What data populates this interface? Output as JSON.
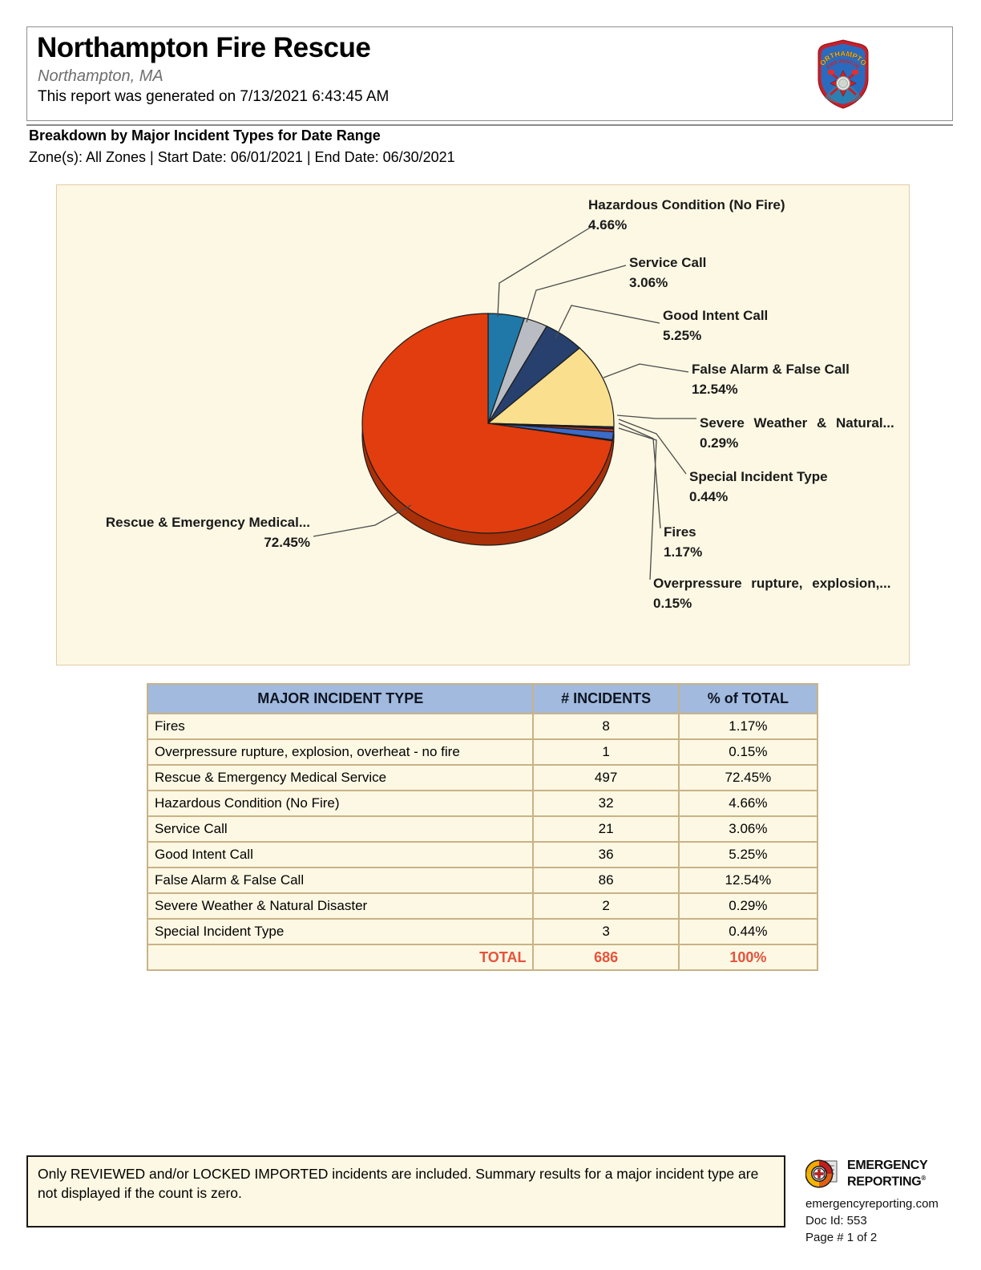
{
  "header": {
    "title": "Northampton Fire Rescue",
    "subtitle": "Northampton, MA",
    "generated": "This report was generated on 7/13/2021 6:43:45 AM",
    "badge_top": "NORTHAMPTON",
    "badge_bottom": "FIRE RESCUE"
  },
  "report": {
    "heading": "Breakdown by Major Incident Types for Date Range",
    "zones": "Zone(s): All Zones | Start Date: 06/01/2021 | End Date: 06/30/2021"
  },
  "chart_data": {
    "type": "pie",
    "title": "Breakdown by Major Incident Types",
    "direction": "clockwise",
    "start_angle_deg": 0,
    "rim_color": "#A93008",
    "slices": [
      {
        "label": "Hazardous Condition (No Fire)",
        "pct": 4.66,
        "pct_label": "4.66%",
        "color": "#1F78A8"
      },
      {
        "label": "Service Call",
        "pct": 3.06,
        "pct_label": "3.06%",
        "color": "#B9BCC2"
      },
      {
        "label": "Good Intent Call",
        "pct": 5.25,
        "pct_label": "5.25%",
        "color": "#27406E"
      },
      {
        "label": "False Alarm & False Call",
        "pct": 12.54,
        "pct_label": "12.54%",
        "color": "#FADF8E"
      },
      {
        "label": "Severe Weather & Natural...",
        "pct": 0.29,
        "pct_label": "0.29%",
        "color": "#1B2A44"
      },
      {
        "label": "Special Incident Type",
        "pct": 0.44,
        "pct_label": "0.44%",
        "color": "#C23B2B"
      },
      {
        "label": "Fires",
        "pct": 1.17,
        "pct_label": "1.17%",
        "color": "#3C6BC8"
      },
      {
        "label": "Overpressure rupture, explosion,...",
        "pct": 0.15,
        "pct_label": "0.15%",
        "color": "#5A1F12"
      },
      {
        "label": "Rescue & Emergency Medical...",
        "pct": 72.45,
        "pct_label": "72.45%",
        "color": "#E13D0F"
      }
    ]
  },
  "table": {
    "headers": [
      "MAJOR INCIDENT TYPE",
      "# INCIDENTS",
      "% of TOTAL"
    ],
    "rows": [
      [
        "Fires",
        "8",
        "1.17%"
      ],
      [
        "Overpressure rupture, explosion, overheat - no fire",
        "1",
        "0.15%"
      ],
      [
        "Rescue & Emergency Medical Service",
        "497",
        "72.45%"
      ],
      [
        "Hazardous Condition (No Fire)",
        "32",
        "4.66%"
      ],
      [
        "Service Call",
        "21",
        "3.06%"
      ],
      [
        "Good Intent Call",
        "36",
        "5.25%"
      ],
      [
        "False Alarm & False Call",
        "86",
        "12.54%"
      ],
      [
        "Severe Weather & Natural Disaster",
        "2",
        "0.29%"
      ],
      [
        "Special Incident Type",
        "3",
        "0.44%"
      ]
    ],
    "total": {
      "label": "TOTAL",
      "incidents": "686",
      "pct": "100%"
    }
  },
  "footer": {
    "note": "Only REVIEWED and/or LOCKED IMPORTED incidents are included.  Summary results for a major incident type are not displayed if the count is zero.",
    "brand_name_line1": "EMERGENCY",
    "brand_name_line2": "REPORTING",
    "brand_reg": "®",
    "website": "emergencyreporting.com",
    "doc_id": "Doc Id: 553",
    "page": "Page # 1 of 2"
  }
}
